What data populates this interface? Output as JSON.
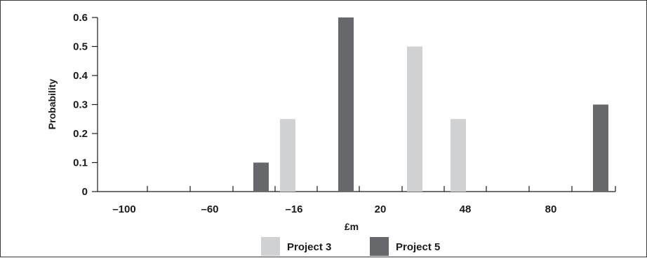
{
  "chart_data": {
    "type": "bar",
    "title": "",
    "xlabel": "£m",
    "ylabel": "Probability",
    "ylim": [
      0,
      0.6
    ],
    "yticks": [
      "0",
      "0.1",
      "0.2",
      "0.3",
      "0.4",
      "0.5",
      "0.6"
    ],
    "xticks": [
      "–100",
      "–60",
      "–16",
      "20",
      "48",
      "80"
    ],
    "grid": false,
    "legend_placement": "bottom-center",
    "series": [
      {
        "name": "Project 3",
        "color": "#d0d1d3",
        "points": [
          {
            "x": -16,
            "value": 0.25
          },
          {
            "x": 20,
            "value": 0.5
          },
          {
            "x": 48,
            "value": 0.25
          }
        ]
      },
      {
        "name": "Project 5",
        "color": "#67686c",
        "points": [
          {
            "x": -30,
            "value": 0.1
          },
          {
            "x": 10,
            "value": 0.6
          },
          {
            "x": 100,
            "value": 0.3
          }
        ]
      }
    ]
  }
}
